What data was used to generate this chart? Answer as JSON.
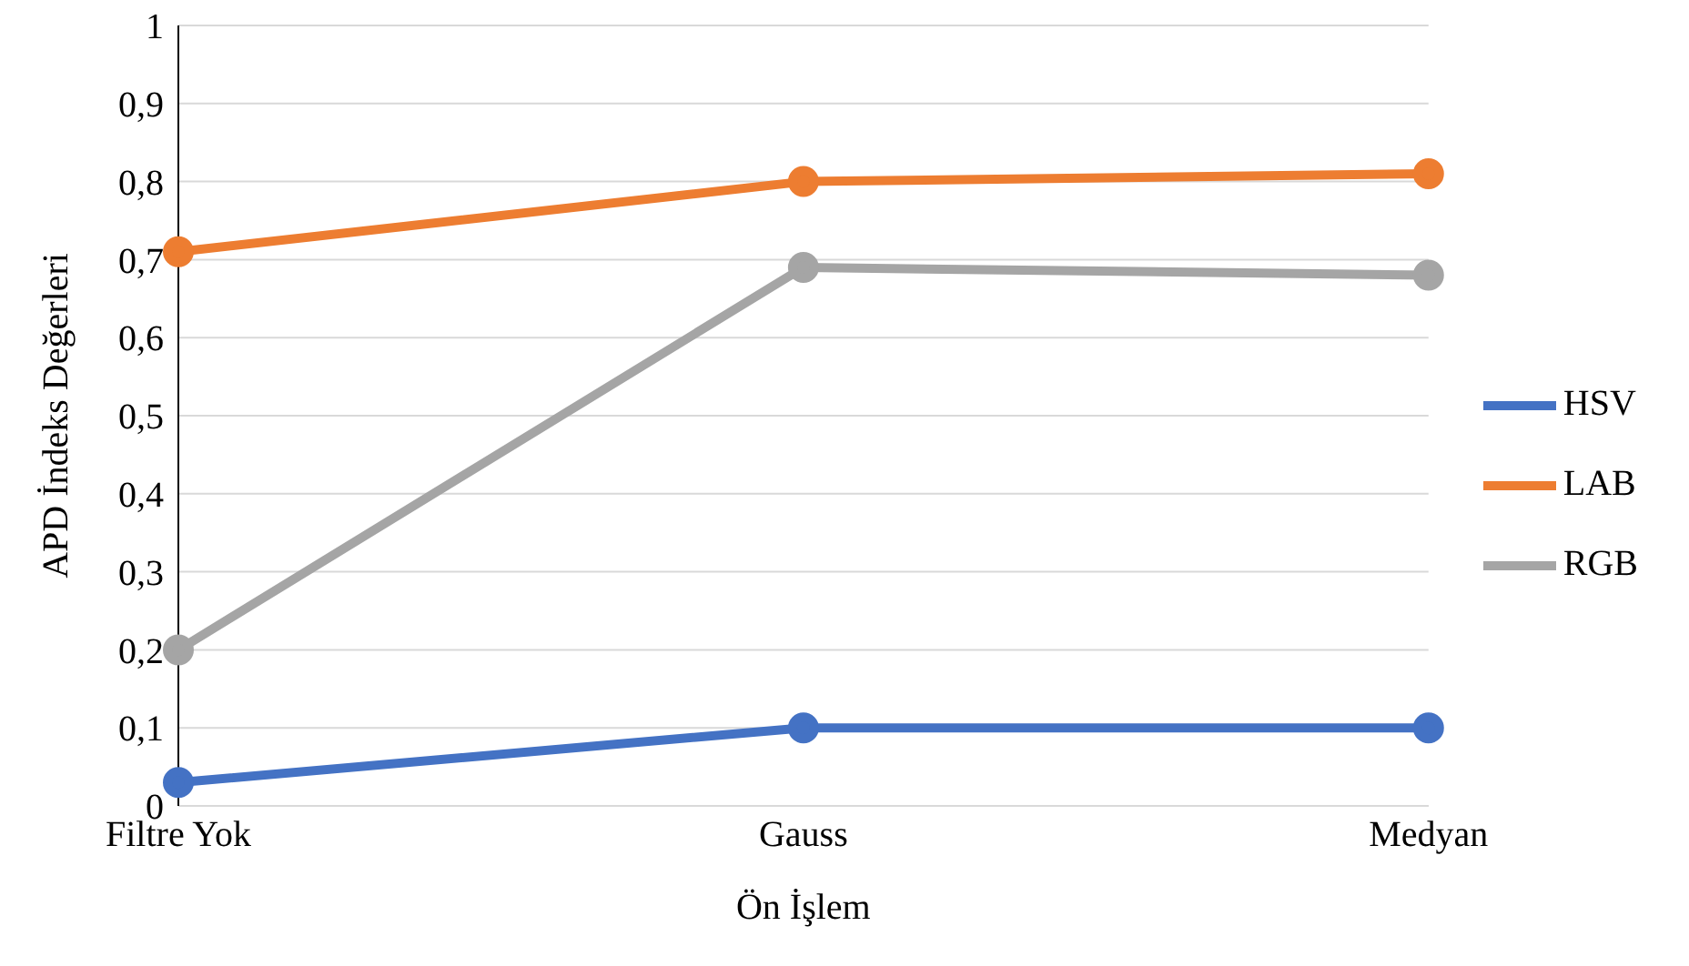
{
  "chart_data": {
    "type": "line",
    "xlabel": "Ön İşlem",
    "ylabel": "APD İndeks Değerleri",
    "categories": [
      "Filtre Yok",
      "Gauss",
      "Medyan"
    ],
    "series": [
      {
        "name": "HSV",
        "color": "#4472c4",
        "values": [
          0.03,
          0.1,
          0.1
        ]
      },
      {
        "name": "LAB",
        "color": "#ed7d31",
        "values": [
          0.71,
          0.8,
          0.81
        ]
      },
      {
        "name": "RGB",
        "color": "#a5a5a5",
        "values": [
          0.2,
          0.69,
          0.68
        ]
      }
    ],
    "ylim": [
      0,
      1
    ],
    "yticks": [
      {
        "value": 0,
        "label": "0"
      },
      {
        "value": 0.1,
        "label": "0,1"
      },
      {
        "value": 0.2,
        "label": "0,2"
      },
      {
        "value": 0.3,
        "label": "0,3"
      },
      {
        "value": 0.4,
        "label": "0,4"
      },
      {
        "value": 0.5,
        "label": "0,5"
      },
      {
        "value": 0.6,
        "label": "0,6"
      },
      {
        "value": 0.7,
        "label": "0,7"
      },
      {
        "value": 0.8,
        "label": "0,8"
      },
      {
        "value": 0.9,
        "label": "0,9"
      },
      {
        "value": 1,
        "label": "1"
      }
    ],
    "grid": "y",
    "legend": "right",
    "marker": "circle",
    "line_style": "solid"
  }
}
